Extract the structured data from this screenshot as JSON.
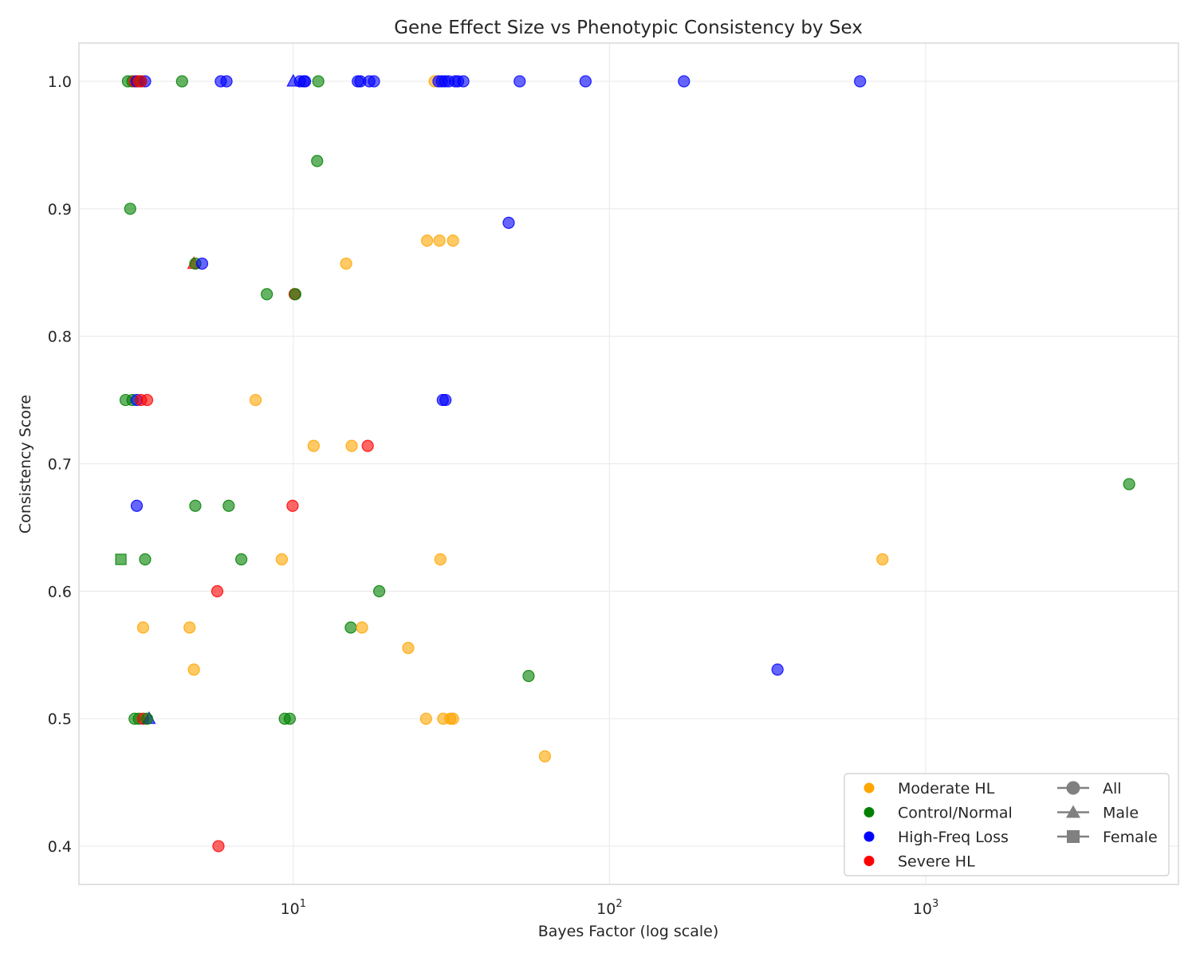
{
  "chart_data": {
    "type": "scatter",
    "title": "Gene Effect Size vs Phenotypic Consistency by Sex",
    "xlabel": "Bayes Factor (log scale)",
    "ylabel": "Consistency Score",
    "xscale": "log",
    "xlim": [
      2.1,
      6300
    ],
    "ylim": [
      0.37,
      1.03
    ],
    "xticks": [
      {
        "value": 10,
        "base": "10",
        "exp": "1"
      },
      {
        "value": 100,
        "base": "10",
        "exp": "2"
      },
      {
        "value": 1000,
        "base": "10",
        "exp": "3"
      }
    ],
    "yticks": [
      {
        "value": 0.4,
        "label": "0.4"
      },
      {
        "value": 0.5,
        "label": "0.5"
      },
      {
        "value": 0.6,
        "label": "0.6"
      },
      {
        "value": 0.7,
        "label": "0.7"
      },
      {
        "value": 0.8,
        "label": "0.8"
      },
      {
        "value": 0.9,
        "label": "0.9"
      },
      {
        "value": 1.0,
        "label": "1.0"
      }
    ],
    "grid": true,
    "legend_position": "lower-right",
    "legend_groups": [
      {
        "name": "Moderate HL",
        "color": "#ffa500"
      },
      {
        "name": "Control/Normal",
        "color": "#008000"
      },
      {
        "name": "High-Freq Loss",
        "color": "#0000ff"
      },
      {
        "name": "Severe HL",
        "color": "#ff0000"
      }
    ],
    "legend_sexes": [
      {
        "name": "All",
        "marker": "circle"
      },
      {
        "name": "Male",
        "marker": "triangle"
      },
      {
        "name": "Female",
        "marker": "square"
      }
    ],
    "points": [
      {
        "x": 3.0,
        "y": 1.0,
        "group": "Control/Normal",
        "sex": "All"
      },
      {
        "x": 3.1,
        "y": 1.0,
        "group": "Control/Normal",
        "sex": "All"
      },
      {
        "x": 3.15,
        "y": 1.0,
        "group": "Severe HL",
        "sex": "All"
      },
      {
        "x": 3.2,
        "y": 1.0,
        "group": "High-Freq Loss",
        "sex": "All"
      },
      {
        "x": 3.25,
        "y": 1.0,
        "group": "Severe HL",
        "sex": "All"
      },
      {
        "x": 3.3,
        "y": 1.0,
        "group": "Control/Normal",
        "sex": "All"
      },
      {
        "x": 3.4,
        "y": 1.0,
        "group": "High-Freq Loss",
        "sex": "All"
      },
      {
        "x": 3.3,
        "y": 1.0,
        "group": "Severe HL",
        "sex": "All"
      },
      {
        "x": 4.45,
        "y": 1.0,
        "group": "Control/Normal",
        "sex": "All"
      },
      {
        "x": 5.9,
        "y": 1.0,
        "group": "High-Freq Loss",
        "sex": "All"
      },
      {
        "x": 6.15,
        "y": 1.0,
        "group": "High-Freq Loss",
        "sex": "All"
      },
      {
        "x": 10.0,
        "y": 1.0,
        "group": "High-Freq Loss",
        "sex": "Male"
      },
      {
        "x": 10.5,
        "y": 1.0,
        "group": "High-Freq Loss",
        "sex": "All"
      },
      {
        "x": 10.8,
        "y": 1.0,
        "group": "High-Freq Loss",
        "sex": "All"
      },
      {
        "x": 10.9,
        "y": 1.0,
        "group": "High-Freq Loss",
        "sex": "All"
      },
      {
        "x": 12.0,
        "y": 1.0,
        "group": "Control/Normal",
        "sex": "All"
      },
      {
        "x": 16.0,
        "y": 1.0,
        "group": "High-Freq Loss",
        "sex": "All"
      },
      {
        "x": 16.3,
        "y": 1.0,
        "group": "High-Freq Loss",
        "sex": "All"
      },
      {
        "x": 17.4,
        "y": 1.0,
        "group": "High-Freq Loss",
        "sex": "All"
      },
      {
        "x": 18.0,
        "y": 1.0,
        "group": "High-Freq Loss",
        "sex": "All"
      },
      {
        "x": 28.0,
        "y": 1.0,
        "group": "Moderate HL",
        "sex": "All"
      },
      {
        "x": 28.8,
        "y": 1.0,
        "group": "High-Freq Loss",
        "sex": "All"
      },
      {
        "x": 29.5,
        "y": 1.0,
        "group": "High-Freq Loss",
        "sex": "All"
      },
      {
        "x": 30.2,
        "y": 1.0,
        "group": "High-Freq Loss",
        "sex": "All"
      },
      {
        "x": 31.0,
        "y": 1.0,
        "group": "High-Freq Loss",
        "sex": "All"
      },
      {
        "x": 32.5,
        "y": 1.0,
        "group": "High-Freq Loss",
        "sex": "All"
      },
      {
        "x": 33.2,
        "y": 1.0,
        "group": "High-Freq Loss",
        "sex": "All"
      },
      {
        "x": 34.5,
        "y": 1.0,
        "group": "High-Freq Loss",
        "sex": "All"
      },
      {
        "x": 52.0,
        "y": 1.0,
        "group": "High-Freq Loss",
        "sex": "All"
      },
      {
        "x": 84.0,
        "y": 1.0,
        "group": "High-Freq Loss",
        "sex": "All"
      },
      {
        "x": 172.0,
        "y": 1.0,
        "group": "High-Freq Loss",
        "sex": "All"
      },
      {
        "x": 620.0,
        "y": 1.0,
        "group": "High-Freq Loss",
        "sex": "All"
      },
      {
        "x": 11.9,
        "y": 0.9375,
        "group": "Control/Normal",
        "sex": "All"
      },
      {
        "x": 3.05,
        "y": 0.9,
        "group": "Control/Normal",
        "sex": "All"
      },
      {
        "x": 48.0,
        "y": 0.889,
        "group": "High-Freq Loss",
        "sex": "All"
      },
      {
        "x": 26.5,
        "y": 0.875,
        "group": "Moderate HL",
        "sex": "All"
      },
      {
        "x": 29.0,
        "y": 0.875,
        "group": "Moderate HL",
        "sex": "All"
      },
      {
        "x": 32.0,
        "y": 0.875,
        "group": "Moderate HL",
        "sex": "All"
      },
      {
        "x": 4.85,
        "y": 0.857,
        "group": "Severe HL",
        "sex": "Male"
      },
      {
        "x": 4.9,
        "y": 0.857,
        "group": "Control/Normal",
        "sex": "All"
      },
      {
        "x": 5.15,
        "y": 0.857,
        "group": "High-Freq Loss",
        "sex": "All"
      },
      {
        "x": 14.7,
        "y": 0.857,
        "group": "Moderate HL",
        "sex": "All"
      },
      {
        "x": 8.25,
        "y": 0.833,
        "group": "Control/Normal",
        "sex": "All"
      },
      {
        "x": 10.1,
        "y": 0.833,
        "group": "Severe HL",
        "sex": "All"
      },
      {
        "x": 10.15,
        "y": 0.833,
        "group": "Control/Normal",
        "sex": "All"
      },
      {
        "x": 2.95,
        "y": 0.75,
        "group": "Control/Normal",
        "sex": "All"
      },
      {
        "x": 3.1,
        "y": 0.75,
        "group": "Control/Normal",
        "sex": "All"
      },
      {
        "x": 3.2,
        "y": 0.75,
        "group": "High-Freq Loss",
        "sex": "All"
      },
      {
        "x": 3.3,
        "y": 0.75,
        "group": "Severe HL",
        "sex": "All"
      },
      {
        "x": 3.45,
        "y": 0.75,
        "group": "Severe HL",
        "sex": "All"
      },
      {
        "x": 7.6,
        "y": 0.75,
        "group": "Moderate HL",
        "sex": "All"
      },
      {
        "x": 29.7,
        "y": 0.75,
        "group": "High-Freq Loss",
        "sex": "All"
      },
      {
        "x": 30.3,
        "y": 0.75,
        "group": "High-Freq Loss",
        "sex": "All"
      },
      {
        "x": 11.6,
        "y": 0.714,
        "group": "Moderate HL",
        "sex": "All"
      },
      {
        "x": 15.3,
        "y": 0.714,
        "group": "Moderate HL",
        "sex": "All"
      },
      {
        "x": 17.2,
        "y": 0.714,
        "group": "Severe HL",
        "sex": "All"
      },
      {
        "x": 4400.0,
        "y": 0.684,
        "group": "Control/Normal",
        "sex": "All"
      },
      {
        "x": 3.2,
        "y": 0.667,
        "group": "High-Freq Loss",
        "sex": "All"
      },
      {
        "x": 4.9,
        "y": 0.667,
        "group": "Control/Normal",
        "sex": "All"
      },
      {
        "x": 6.25,
        "y": 0.667,
        "group": "Control/Normal",
        "sex": "All"
      },
      {
        "x": 9.95,
        "y": 0.667,
        "group": "Severe HL",
        "sex": "All"
      },
      {
        "x": 2.85,
        "y": 0.625,
        "group": "Control/Normal",
        "sex": "Female"
      },
      {
        "x": 3.4,
        "y": 0.625,
        "group": "Control/Normal",
        "sex": "All"
      },
      {
        "x": 6.85,
        "y": 0.625,
        "group": "Control/Normal",
        "sex": "All"
      },
      {
        "x": 9.2,
        "y": 0.625,
        "group": "Moderate HL",
        "sex": "All"
      },
      {
        "x": 29.2,
        "y": 0.625,
        "group": "Moderate HL",
        "sex": "All"
      },
      {
        "x": 730.0,
        "y": 0.625,
        "group": "Moderate HL",
        "sex": "All"
      },
      {
        "x": 5.75,
        "y": 0.6,
        "group": "Severe HL",
        "sex": "All"
      },
      {
        "x": 18.7,
        "y": 0.6,
        "group": "Control/Normal",
        "sex": "All"
      },
      {
        "x": 3.35,
        "y": 0.5715,
        "group": "Moderate HL",
        "sex": "All"
      },
      {
        "x": 4.7,
        "y": 0.5715,
        "group": "Moderate HL",
        "sex": "All"
      },
      {
        "x": 15.2,
        "y": 0.5715,
        "group": "Control/Normal",
        "sex": "All"
      },
      {
        "x": 16.5,
        "y": 0.5715,
        "group": "Moderate HL",
        "sex": "All"
      },
      {
        "x": 23.1,
        "y": 0.5555,
        "group": "Moderate HL",
        "sex": "All"
      },
      {
        "x": 4.85,
        "y": 0.5385,
        "group": "Moderate HL",
        "sex": "All"
      },
      {
        "x": 340.0,
        "y": 0.5385,
        "group": "High-Freq Loss",
        "sex": "All"
      },
      {
        "x": 55.5,
        "y": 0.5335,
        "group": "Control/Normal",
        "sex": "All"
      },
      {
        "x": 3.15,
        "y": 0.5,
        "group": "Control/Normal",
        "sex": "All"
      },
      {
        "x": 3.25,
        "y": 0.5,
        "group": "Control/Normal",
        "sex": "All"
      },
      {
        "x": 3.35,
        "y": 0.5,
        "group": "Severe HL",
        "sex": "All"
      },
      {
        "x": 3.5,
        "y": 0.5,
        "group": "High-Freq Loss",
        "sex": "Male"
      },
      {
        "x": 3.45,
        "y": 0.5,
        "group": "Control/Normal",
        "sex": "All"
      },
      {
        "x": 9.4,
        "y": 0.5,
        "group": "Control/Normal",
        "sex": "All"
      },
      {
        "x": 9.75,
        "y": 0.5,
        "group": "Control/Normal",
        "sex": "All"
      },
      {
        "x": 26.3,
        "y": 0.5,
        "group": "Moderate HL",
        "sex": "All"
      },
      {
        "x": 29.8,
        "y": 0.5,
        "group": "Moderate HL",
        "sex": "All"
      },
      {
        "x": 31.4,
        "y": 0.5,
        "group": "Moderate HL",
        "sex": "All"
      },
      {
        "x": 32.0,
        "y": 0.5,
        "group": "Moderate HL",
        "sex": "All"
      },
      {
        "x": 62.5,
        "y": 0.4705,
        "group": "Moderate HL",
        "sex": "All"
      },
      {
        "x": 5.8,
        "y": 0.4,
        "group": "Severe HL",
        "sex": "All"
      }
    ]
  }
}
